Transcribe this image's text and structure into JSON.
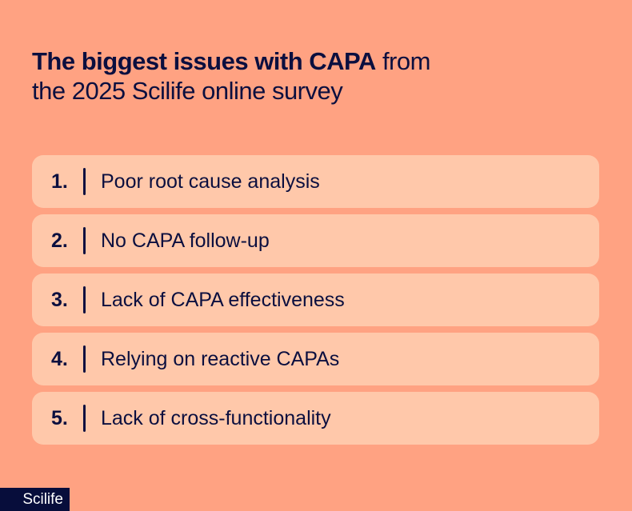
{
  "title": {
    "bold": "The biggest issues with CAPA",
    "rest_line1": " from",
    "line2": "the 2025 Scilife online survey"
  },
  "items": [
    {
      "num": "1.",
      "label": "Poor root cause analysis"
    },
    {
      "num": "2.",
      "label": "No CAPA follow-up"
    },
    {
      "num": "3.",
      "label": "Lack of CAPA effectiveness"
    },
    {
      "num": "4.",
      "label": "Relying on reactive CAPAs"
    },
    {
      "num": "5.",
      "label": "Lack of cross-functionality"
    }
  ],
  "logo": "Scilife",
  "colors": {
    "background": "#ffa282",
    "card": "#ffc8aa",
    "text": "#0b0f3f",
    "logo_bg": "#070d3b"
  }
}
